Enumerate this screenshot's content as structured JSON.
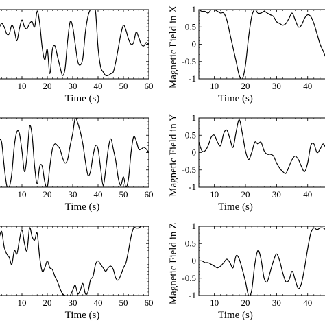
{
  "chart_data": [
    {
      "type": "line",
      "xlabel": "Time (s)",
      "ylabel": "",
      "xlim": [
        0,
        60
      ],
      "ylim": [
        -1,
        1
      ],
      "xticks": [
        "10",
        "20",
        "30",
        "40",
        "50",
        "60"
      ],
      "yticks": [],
      "series": [
        {
          "x": [
            0,
            1,
            2,
            3,
            4,
            5,
            6,
            7,
            8,
            9,
            10,
            11,
            12,
            13,
            14,
            15,
            16,
            17,
            18,
            19,
            20,
            21,
            22,
            23,
            24,
            25,
            26,
            27,
            28,
            29,
            30,
            31,
            32,
            33,
            34,
            35,
            36,
            37,
            38,
            39,
            40,
            41,
            42,
            43,
            44,
            45,
            46,
            47,
            48,
            49,
            50,
            51,
            52,
            53,
            54,
            55,
            56,
            57,
            58,
            59,
            60
          ],
          "y": [
            0.1,
            0.45,
            0.6,
            0.5,
            0.3,
            0.3,
            0.55,
            0.4,
            0.1,
            0.45,
            0.7,
            0.5,
            0.45,
            0.6,
            0.65,
            0.5,
            0.95,
            0.6,
            -0.1,
            -0.45,
            -0.15,
            -0.85,
            -0.15,
            -0.05,
            -0.35,
            -0.65,
            -0.9,
            -0.7,
            0.1,
            0.65,
            0.5,
            0.0,
            -0.5,
            -0.6,
            -0.4,
            0.35,
            0.8,
            1.0,
            1.0,
            0.95,
            -0.1,
            -0.65,
            -0.8,
            -0.9,
            -0.9,
            -0.85,
            -0.8,
            -0.5,
            -0.1,
            0.3,
            0.55,
            0.4,
            0.15,
            0.0,
            0.05,
            0.35,
            0.2,
            0.0,
            -0.05,
            0.05,
            0.0
          ]
        }
      ]
    },
    {
      "type": "line",
      "xlabel": "Time (s)",
      "ylabel": "Magnetic Field in X",
      "xlim": [
        5,
        48
      ],
      "ylim": [
        -1,
        1
      ],
      "xticks": [
        "10",
        "20",
        "30",
        "40"
      ],
      "yticks": [
        "1",
        "0.5",
        "0",
        "-0.5",
        "-1"
      ],
      "series": [
        {
          "x": [
            5,
            6,
            7,
            8,
            9,
            10,
            11,
            12,
            13,
            14,
            15,
            16,
            17,
            18,
            19,
            20,
            21,
            22,
            23,
            24,
            25,
            26,
            27,
            28,
            29,
            30,
            31,
            32,
            33,
            34,
            35,
            36,
            37,
            38,
            39,
            40,
            41,
            42,
            43,
            44,
            45,
            46,
            47,
            48
          ],
          "y": [
            1.0,
            0.95,
            0.95,
            0.9,
            1.0,
            1.0,
            0.95,
            0.9,
            0.9,
            0.7,
            0.3,
            -0.1,
            -0.5,
            -0.9,
            -1.0,
            -0.6,
            0.2,
            0.8,
            1.0,
            0.9,
            0.9,
            0.95,
            0.9,
            0.85,
            0.8,
            0.65,
            0.6,
            0.55,
            0.6,
            0.75,
            0.9,
            0.7,
            0.5,
            0.55,
            0.75,
            0.85,
            0.8,
            0.6,
            0.3,
            0.0,
            -0.2,
            -0.4,
            -0.35,
            -0.4
          ]
        }
      ]
    },
    {
      "type": "line",
      "xlabel": "Time (s)",
      "ylabel": "",
      "xlim": [
        0,
        60
      ],
      "ylim": [
        -1,
        1
      ],
      "xticks": [
        "10",
        "20",
        "30",
        "40",
        "50",
        "60"
      ],
      "yticks": [],
      "series": [
        {
          "x": [
            0,
            1,
            2,
            3,
            4,
            5,
            6,
            7,
            8,
            9,
            10,
            11,
            12,
            13,
            14,
            15,
            16,
            17,
            18,
            19,
            20,
            21,
            22,
            23,
            24,
            25,
            26,
            27,
            28,
            29,
            30,
            31,
            32,
            33,
            34,
            35,
            36,
            37,
            38,
            39,
            40,
            41,
            42,
            43,
            44,
            45,
            46,
            47,
            48,
            49,
            50,
            51,
            52,
            53,
            54,
            55,
            56,
            57,
            58,
            59,
            60
          ],
          "y": [
            0.7,
            0.4,
            0.3,
            -0.4,
            -0.95,
            -1.0,
            -0.6,
            0.2,
            0.6,
            0.55,
            0.05,
            -0.55,
            -0.1,
            0.75,
            0.5,
            -0.4,
            -0.9,
            -0.4,
            -0.4,
            -0.85,
            -1.0,
            -0.4,
            0.1,
            0.25,
            0.2,
            0.1,
            -0.15,
            -0.3,
            -0.2,
            0.2,
            0.55,
            1.0,
            0.85,
            0.6,
            0.25,
            -0.25,
            -0.65,
            -0.55,
            -0.1,
            0.2,
            0.1,
            -0.45,
            -0.95,
            -0.5,
            0.1,
            0.4,
            0.1,
            -0.25,
            -0.75,
            -0.95,
            -0.7,
            -1.0,
            -0.75,
            0.0,
            0.45,
            0.35,
            0.1,
            0.1,
            0.15,
            0.1,
            0.0
          ]
        }
      ]
    },
    {
      "type": "line",
      "xlabel": "Time (s)",
      "ylabel": "Magnetic Field in Y",
      "xlim": [
        5,
        48
      ],
      "ylim": [
        -1,
        1
      ],
      "xticks": [
        "10",
        "20",
        "30",
        "40"
      ],
      "yticks": [
        "1",
        "0.5",
        "0",
        "-0.5",
        "-1"
      ],
      "series": [
        {
          "x": [
            5,
            6,
            7,
            8,
            9,
            10,
            11,
            12,
            13,
            14,
            15,
            16,
            17,
            18,
            19,
            20,
            21,
            22,
            23,
            24,
            25,
            26,
            27,
            28,
            29,
            30,
            31,
            32,
            33,
            34,
            35,
            36,
            37,
            38,
            39,
            40,
            41,
            42,
            43,
            44,
            45,
            46,
            47,
            48
          ],
          "y": [
            0.3,
            0.05,
            0.05,
            0.2,
            0.45,
            0.5,
            0.3,
            0.2,
            0.55,
            0.65,
            0.4,
            0.15,
            0.6,
            0.95,
            0.55,
            0.05,
            -0.2,
            0.0,
            0.3,
            0.25,
            0.3,
            0.05,
            -0.05,
            -0.05,
            -0.1,
            -0.3,
            -0.45,
            -0.55,
            -0.6,
            -0.4,
            -0.2,
            -0.1,
            -0.2,
            -0.4,
            -0.55,
            -0.3,
            0.2,
            0.25,
            0.0,
            0.1,
            0.25,
            0.1,
            0.0,
            0.0
          ]
        }
      ]
    },
    {
      "type": "line",
      "xlabel": "Time (s)",
      "ylabel": "",
      "xlim": [
        0,
        60
      ],
      "ylim": [
        -1,
        1
      ],
      "xticks": [
        "10",
        "20",
        "30",
        "40",
        "50",
        "60"
      ],
      "yticks": [],
      "series": [
        {
          "x": [
            0,
            1,
            2,
            3,
            4,
            5,
            6,
            7,
            8,
            9,
            10,
            11,
            12,
            13,
            14,
            15,
            16,
            17,
            18,
            19,
            20,
            21,
            22,
            23,
            24,
            25,
            26,
            27,
            28,
            29,
            30,
            31,
            32,
            33,
            34,
            35,
            36,
            37,
            38,
            39,
            40,
            41,
            42,
            43,
            44,
            45,
            46,
            47,
            48,
            49,
            50,
            51,
            52,
            53,
            54,
            55,
            56,
            57,
            58,
            59,
            60
          ],
          "y": [
            0.95,
            0.7,
            0.85,
            0.4,
            0.2,
            0.1,
            -0.1,
            0.3,
            0.2,
            0.6,
            0.9,
            0.5,
            0.3,
            0.95,
            0.7,
            0.6,
            0.8,
            0.1,
            -0.3,
            -0.2,
            0.0,
            -0.2,
            -0.25,
            -0.45,
            -0.6,
            -0.8,
            -0.95,
            -1.0,
            -1.0,
            -1.0,
            -0.85,
            -0.7,
            -0.95,
            -0.85,
            -0.65,
            -0.95,
            -0.9,
            -0.55,
            -0.45,
            -0.1,
            0.0,
            -0.1,
            -0.2,
            -0.3,
            -0.2,
            -0.15,
            -0.25,
            -0.5,
            -0.55,
            -0.4,
            -0.2,
            -0.05,
            0.3,
            0.7,
            0.95,
            0.95,
            0.95,
            1.0,
            1.0,
            1.0,
            1.0
          ]
        }
      ]
    },
    {
      "type": "line",
      "xlabel": "Time (s)",
      "ylabel": "Magnetic Field in Z",
      "xlim": [
        5,
        48
      ],
      "ylim": [
        -1,
        1
      ],
      "xticks": [
        "10",
        "20",
        "30",
        "40"
      ],
      "yticks": [
        "1",
        "0.5",
        "0",
        "-0.5",
        "-1"
      ],
      "series": [
        {
          "x": [
            5,
            6,
            7,
            8,
            9,
            10,
            11,
            12,
            13,
            14,
            15,
            16,
            17,
            18,
            19,
            20,
            21,
            22,
            23,
            24,
            25,
            26,
            27,
            28,
            29,
            30,
            31,
            32,
            33,
            34,
            35,
            36,
            37,
            38,
            39,
            40,
            41,
            42,
            43,
            44,
            45,
            46,
            47,
            48
          ],
          "y": [
            0.0,
            0.0,
            -0.05,
            -0.05,
            -0.1,
            -0.15,
            -0.2,
            -0.15,
            -0.05,
            0.05,
            -0.05,
            -0.2,
            0.15,
            0.05,
            -0.25,
            -0.6,
            -1.0,
            -0.85,
            -0.1,
            0.3,
            0.05,
            -0.5,
            -0.6,
            -0.3,
            0.0,
            0.2,
            0.0,
            -0.35,
            -0.6,
            -0.55,
            -0.3,
            -0.55,
            -0.8,
            -0.65,
            -0.2,
            0.35,
            0.8,
            0.95,
            0.9,
            0.95,
            0.95,
            0.9,
            0.95,
            0.95
          ]
        }
      ]
    }
  ]
}
